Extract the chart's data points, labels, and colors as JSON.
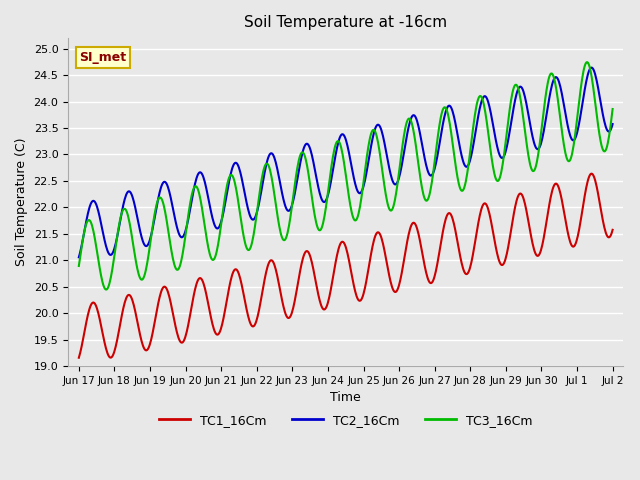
{
  "title": "Soil Temperature at -16cm",
  "xlabel": "Time",
  "ylabel": "Soil Temperature (C)",
  "ylim": [
    19.0,
    25.2
  ],
  "annotation": "SI_met",
  "background_color": "#e8e8e8",
  "plot_bg_color": "#e8e8e8",
  "grid_color": "#ffffff",
  "series": {
    "TC1_16Cm": {
      "color": "#cc0000",
      "linewidth": 1.5
    },
    "TC2_16Cm": {
      "color": "#0000cc",
      "linewidth": 1.5
    },
    "TC3_16Cm": {
      "color": "#00bb00",
      "linewidth": 1.5
    }
  },
  "xtick_labels": [
    "Jun 17",
    "Jun 18",
    "Jun 19",
    "Jun 20",
    "Jun 21",
    "Jun 22",
    "Jun 23",
    "Jun 24",
    "Jun 25",
    "Jun 26",
    "Jun 27",
    "Jun 28",
    "Jun 29",
    "Jun 30",
    "Jul 1",
    "Jul 2"
  ],
  "ytick_vals": [
    19.0,
    19.5,
    20.0,
    20.5,
    21.0,
    21.5,
    22.0,
    22.5,
    23.0,
    23.5,
    24.0,
    24.5,
    25.0
  ]
}
